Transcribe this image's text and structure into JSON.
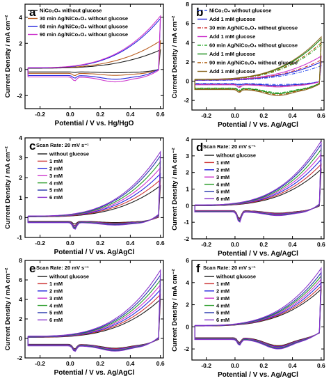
{
  "chart_data": [
    {
      "panel": "a",
      "type": "line",
      "xlabel": "Potential / V vs. Hg/HgO",
      "ylabel": "Current Density / mA cm⁻²",
      "xlim": [
        -0.3,
        0.62
      ],
      "ylim": [
        -3,
        5
      ],
      "xticks": [
        -0.2,
        0.0,
        0.2,
        0.4,
        0.6
      ],
      "xtick_labels": [
        "-0.2",
        "0.0",
        "0.2",
        "0.4",
        "0.6"
      ],
      "yticks": [
        -2,
        0,
        2,
        4
      ],
      "ytick_labels": [
        "-2",
        "0",
        "2",
        "4"
      ],
      "legend_position": "top-left",
      "series": [
        {
          "name": "NiCo₂O₄ without glucose",
          "color": "#1a1a1a",
          "style": "solid",
          "imax": 1.5,
          "imin": -0.25,
          "peak": -0.25,
          "rest": 0.25
        },
        {
          "name": "30 min Ag/NiCo₂O₄ without glucose",
          "color": "#b85c1e",
          "style": "solid",
          "imax": 2.2,
          "imin": -0.45,
          "peak": -0.55,
          "rest": 0.3
        },
        {
          "name": "60 min Ag/NiCo₂O₄ without glucose",
          "color": "#2222dd",
          "style": "solid",
          "imax": 3.9,
          "imin": -0.75,
          "peak": -0.75,
          "rest": 0.3
        },
        {
          "name": "90 min Ag/NiCo₂O₄ without glucose",
          "color": "#cc33cc",
          "style": "solid",
          "imax": 4.1,
          "imin": -0.95,
          "peak": -1.0,
          "rest": 0.35
        }
      ]
    },
    {
      "panel": "b",
      "type": "line",
      "xlabel": "Potential / V vs. Ag/AgCl",
      "ylabel": "Current Density / mA cm⁻²",
      "xlim": [
        -0.3,
        0.62
      ],
      "ylim": [
        -3,
        8
      ],
      "xticks": [
        -0.2,
        0.0,
        0.2,
        0.4,
        0.6
      ],
      "xtick_labels": [
        "-0.2",
        "0.0",
        "0.2",
        "0.4",
        "0.6"
      ],
      "yticks": [
        -2,
        0,
        2,
        4,
        6,
        8
      ],
      "ytick_labels": [
        "-2",
        "0",
        "2",
        "4",
        "6",
        "8"
      ],
      "legend_position": "top-left",
      "series": [
        {
          "name": "NiCo₂O₄ without glucose",
          "color": "#3355ee",
          "style": "dashdot",
          "imax": 1.6,
          "imin": -0.35,
          "peak": -0.35,
          "rest": 0.2
        },
        {
          "name": "Add 1 mM glucose",
          "color": "#2222dd",
          "style": "solid",
          "imax": 2.0,
          "imin": -0.45,
          "peak": -0.45,
          "rest": 0.25
        },
        {
          "name": "30 min Ag/NiCo₂O₄ without glucose",
          "color": "#cc3333",
          "style": "dashdot",
          "imax": 2.2,
          "imin": -0.55,
          "peak": -0.7,
          "rest": 0.3
        },
        {
          "name": "Add 1 mM glucose",
          "color": "#cc33cc",
          "style": "solid",
          "imax": 2.6,
          "imin": -0.6,
          "peak": -0.8,
          "rest": 0.35
        },
        {
          "name": "60 min Ag/NiCo₂O₄ without glucose",
          "color": "#33aa33",
          "style": "dashdot",
          "imax": 3.8,
          "imin": -1.2,
          "peak": -1.0,
          "rest": 0.4
        },
        {
          "name": "Add 1 mM glucose",
          "color": "#118811",
          "style": "solid",
          "imax": 4.4,
          "imin": -1.3,
          "peak": -1.1,
          "rest": 0.45
        },
        {
          "name": "90 min Ag/NiCo₂O₄ without glucose",
          "color": "#aa5500",
          "style": "dashdot",
          "imax": 4.0,
          "imin": -1.4,
          "peak": -1.2,
          "rest": 0.45
        },
        {
          "name": "Add 1 mM glucose",
          "color": "#886622",
          "style": "solid",
          "imax": 4.6,
          "imin": -1.5,
          "peak": -1.3,
          "rest": 0.5
        }
      ]
    },
    {
      "panel": "c",
      "type": "line",
      "annotation": "Scan Rate: 20 mV s⁻¹",
      "xlabel": "Potential / V vs. Ag/AgCl",
      "ylabel": "Current Density / mA cm⁻²",
      "xlim": [
        -0.3,
        0.62
      ],
      "ylim": [
        -1,
        4
      ],
      "xticks": [
        -0.2,
        0.0,
        0.2,
        0.4,
        0.6
      ],
      "xtick_labels": [
        "-0.2",
        "0.0",
        "0.2",
        "0.4",
        "0.6"
      ],
      "yticks": [
        -1,
        0,
        1,
        2,
        3,
        4
      ],
      "ytick_labels": [
        "-1",
        "0",
        "1",
        "2",
        "3",
        "4"
      ],
      "legend_position": "top-left",
      "series": [
        {
          "name": "without glucose",
          "color": "#1a1a1a",
          "style": "solid",
          "imax": 1.6,
          "imin": -0.25,
          "peak": -0.4,
          "rest": 0.1
        },
        {
          "name": "1 mM",
          "color": "#cc3333",
          "style": "solid",
          "imax": 1.9,
          "imin": -0.28,
          "peak": -0.5,
          "rest": 0.12
        },
        {
          "name": "2 mM",
          "color": "#2222dd",
          "style": "solid",
          "imax": 2.2,
          "imin": -0.3,
          "peak": -0.55,
          "rest": 0.14
        },
        {
          "name": "3 mM",
          "color": "#cc33cc",
          "style": "solid",
          "imax": 2.5,
          "imin": -0.32,
          "peak": -0.6,
          "rest": 0.15
        },
        {
          "name": "4 mM",
          "color": "#229922",
          "style": "solid",
          "imax": 2.8,
          "imin": -0.34,
          "peak": -0.65,
          "rest": 0.17
        },
        {
          "name": "5 mM",
          "color": "#2233aa",
          "style": "solid",
          "imax": 3.1,
          "imin": -0.36,
          "peak": -0.7,
          "rest": 0.19
        },
        {
          "name": "6 mM",
          "color": "#8833cc",
          "style": "solid",
          "imax": 3.3,
          "imin": -0.38,
          "peak": -0.75,
          "rest": 0.2
        }
      ]
    },
    {
      "panel": "d",
      "type": "line",
      "annotation": "Scan Rate: 20 mV s⁻¹",
      "xlabel": "Potential / V vs. Ag/AgCl",
      "ylabel": "Current Density / mA cm⁻²",
      "xlim": [
        -0.3,
        0.62
      ],
      "ylim": [
        -2,
        4
      ],
      "xticks": [
        -0.2,
        0.0,
        0.2,
        0.4,
        0.6
      ],
      "xtick_labels": [
        "-0.2",
        "0.0",
        "0.2",
        "0.4",
        "0.6"
      ],
      "yticks": [
        -2,
        -1,
        0,
        1,
        2,
        3,
        4
      ],
      "ytick_labels": [
        "-2",
        "-1",
        "0",
        "1",
        "2",
        "3",
        "4"
      ],
      "legend_position": "top-left",
      "series": [
        {
          "name": "without glucose",
          "color": "#1a1a1a",
          "style": "solid",
          "imax": 2.2,
          "imin": -0.45,
          "peak": -1.0,
          "rest": 0.0
        },
        {
          "name": "1 mM",
          "color": "#cc3333",
          "style": "solid",
          "imax": 2.5,
          "imin": -0.47,
          "peak": -1.05,
          "rest": 0.02
        },
        {
          "name": "2 mM",
          "color": "#2222dd",
          "style": "solid",
          "imax": 2.8,
          "imin": -0.5,
          "peak": -1.1,
          "rest": 0.04
        },
        {
          "name": "3 mM",
          "color": "#cc33cc",
          "style": "solid",
          "imax": 3.1,
          "imin": -0.52,
          "peak": -1.15,
          "rest": 0.06
        },
        {
          "name": "4 mM",
          "color": "#229922",
          "style": "solid",
          "imax": 3.4,
          "imin": -0.55,
          "peak": -1.2,
          "rest": 0.08
        },
        {
          "name": "5 mM",
          "color": "#2233aa",
          "style": "solid",
          "imax": 3.7,
          "imin": -0.57,
          "peak": -1.25,
          "rest": 0.1
        },
        {
          "name": "6 mM",
          "color": "#8833cc",
          "style": "solid",
          "imax": 3.9,
          "imin": -0.6,
          "peak": -1.3,
          "rest": 0.12
        }
      ]
    },
    {
      "panel": "e",
      "type": "line",
      "annotation": "Scan Rate: 20 mV s⁻¹",
      "xlabel": "Potential / V vs. Ag/AgCl",
      "ylabel": "Current Density / mA cm⁻²",
      "xlim": [
        -0.3,
        0.62
      ],
      "ylim": [
        -2,
        8
      ],
      "xticks": [
        -0.2,
        0.0,
        0.2,
        0.4,
        0.6
      ],
      "xtick_labels": [
        "-0.2",
        "0.0",
        "0.2",
        "0.4",
        "0.6"
      ],
      "yticks": [
        -2,
        0,
        2,
        4,
        6,
        8
      ],
      "ytick_labels": [
        "-2",
        "0",
        "2",
        "4",
        "6",
        "8"
      ],
      "legend_position": "top-left",
      "series": [
        {
          "name": "without glucose",
          "color": "#1a1a1a",
          "style": "solid",
          "imax": 4.0,
          "imin": -1.0,
          "peak": -1.3,
          "rest": 0.3
        },
        {
          "name": "1 mM",
          "color": "#cc3333",
          "style": "solid",
          "imax": 4.5,
          "imin": -1.05,
          "peak": -1.35,
          "rest": 0.35
        },
        {
          "name": "2 mM",
          "color": "#2222dd",
          "style": "solid",
          "imax": 5.0,
          "imin": -1.1,
          "peak": -1.4,
          "rest": 0.4
        },
        {
          "name": "3 mM",
          "color": "#cc33cc",
          "style": "solid",
          "imax": 5.5,
          "imin": -1.15,
          "peak": -1.45,
          "rest": 0.45
        },
        {
          "name": "4 mM",
          "color": "#229922",
          "style": "solid",
          "imax": 6.0,
          "imin": -1.2,
          "peak": -1.5,
          "rest": 0.5
        },
        {
          "name": "5 mM",
          "color": "#2233aa",
          "style": "solid",
          "imax": 6.5,
          "imin": -1.25,
          "peak": -1.55,
          "rest": 0.55
        },
        {
          "name": "6 mM",
          "color": "#8833cc",
          "style": "solid",
          "imax": 7.0,
          "imin": -1.3,
          "peak": -1.6,
          "rest": 0.6
        }
      ]
    },
    {
      "panel": "f",
      "type": "line",
      "annotation": "Scan Rate: 20 mV s⁻¹",
      "xlabel": "Potential / V vs. Ag/AgCl",
      "ylabel": "Current Density / mA cm⁻²",
      "xlim": [
        -0.3,
        0.62
      ],
      "ylim": [
        -3,
        6
      ],
      "xticks": [
        -0.2,
        0.0,
        0.2,
        0.4,
        0.6
      ],
      "xtick_labels": [
        "-0.2",
        "0.0",
        "0.2",
        "0.4",
        "0.6"
      ],
      "yticks": [
        -2,
        0,
        2,
        4,
        6
      ],
      "ytick_labels": [
        "-2",
        "0",
        "2",
        "4",
        "6"
      ],
      "legend_position": "top-left",
      "series": [
        {
          "name": "without glucose",
          "color": "#1a1a1a",
          "style": "solid",
          "imax": 3.4,
          "imin": -1.7,
          "peak": -1.6,
          "rest": 0.2
        },
        {
          "name": "1 mM",
          "color": "#cc3333",
          "style": "solid",
          "imax": 3.7,
          "imin": -1.75,
          "peak": -1.65,
          "rest": 0.22
        },
        {
          "name": "2 mM",
          "color": "#2222dd",
          "style": "solid",
          "imax": 4.0,
          "imin": -1.8,
          "peak": -1.7,
          "rest": 0.24
        },
        {
          "name": "3 mM",
          "color": "#cc33cc",
          "style": "solid",
          "imax": 4.3,
          "imin": -1.85,
          "peak": -1.75,
          "rest": 0.26
        },
        {
          "name": "4 mM",
          "color": "#229922",
          "style": "solid",
          "imax": 4.6,
          "imin": -1.9,
          "peak": -1.8,
          "rest": 0.28
        },
        {
          "name": "5 mM",
          "color": "#2233aa",
          "style": "solid",
          "imax": 4.9,
          "imin": -1.95,
          "peak": -1.85,
          "rest": 0.3
        },
        {
          "name": "6 mM",
          "color": "#8833cc",
          "style": "solid",
          "imax": 5.3,
          "imin": -2.0,
          "peak": -1.9,
          "rest": 0.32
        }
      ]
    }
  ]
}
